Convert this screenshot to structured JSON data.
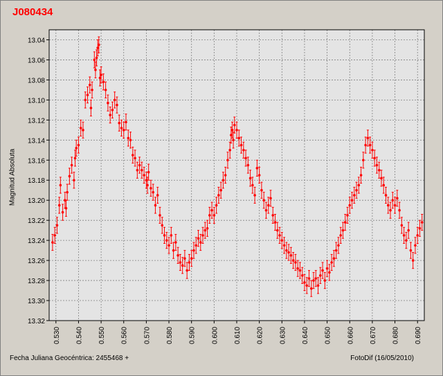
{
  "window": {
    "title": "J080434"
  },
  "footer": {
    "left": "Fecha Juliana Geocéntrica: 2455468 +",
    "right": "FotoDif (16/05/2010)"
  },
  "colors": {
    "data": "#ff0000",
    "plot_bg": "#e4e4e4",
    "grid": "#808080"
  },
  "chart_data": {
    "type": "scatter",
    "title": "J080434",
    "xlabel": "Fecha Juliana Geocéntrica: 2455468 +",
    "ylabel": "Magnitud Absoluta",
    "xlim": [
      0.527,
      0.693
    ],
    "ylim": [
      13.32,
      13.03
    ],
    "y_inverted": true,
    "grid": true,
    "error_bars": true,
    "x_ticks": [
      "0.530",
      "0.540",
      "0.550",
      "0.560",
      "0.570",
      "0.580",
      "0.590",
      "0.600",
      "0.610",
      "0.620",
      "0.630",
      "0.640",
      "0.650",
      "0.660",
      "0.670",
      "0.680",
      "0.690"
    ],
    "y_ticks": [
      "13.04",
      "13.06",
      "13.08",
      "13.10",
      "13.12",
      "13.14",
      "13.16",
      "13.18",
      "13.20",
      "13.22",
      "13.24",
      "13.26",
      "13.28",
      "13.30",
      "13.32"
    ],
    "series": [
      {
        "points": [
          [
            0.5285,
            13.242
          ],
          [
            0.5295,
            13.235
          ],
          [
            0.5305,
            13.225
          ],
          [
            0.5315,
            13.205
          ],
          [
            0.532,
            13.185
          ],
          [
            0.533,
            13.212
          ],
          [
            0.534,
            13.2
          ],
          [
            0.5345,
            13.208
          ],
          [
            0.535,
            13.192
          ],
          [
            0.536,
            13.176
          ],
          [
            0.537,
            13.165
          ],
          [
            0.538,
            13.18
          ],
          [
            0.5385,
            13.158
          ],
          [
            0.539,
            13.148
          ],
          [
            0.54,
            13.145
          ],
          [
            0.541,
            13.128
          ],
          [
            0.542,
            13.13
          ],
          [
            0.543,
            13.1
          ],
          [
            0.544,
            13.095
          ],
          [
            0.545,
            13.085
          ],
          [
            0.5455,
            13.108
          ],
          [
            0.546,
            13.09
          ],
          [
            0.547,
            13.06
          ],
          [
            0.5475,
            13.07
          ],
          [
            0.548,
            13.058
          ],
          [
            0.5485,
            13.048
          ],
          [
            0.549,
            13.045
          ],
          [
            0.5495,
            13.078
          ],
          [
            0.55,
            13.075
          ],
          [
            0.551,
            13.082
          ],
          [
            0.552,
            13.09
          ],
          [
            0.553,
            13.103
          ],
          [
            0.554,
            13.115
          ],
          [
            0.555,
            13.11
          ],
          [
            0.556,
            13.1
          ],
          [
            0.557,
            13.105
          ],
          [
            0.558,
            13.123
          ],
          [
            0.559,
            13.128
          ],
          [
            0.56,
            13.13
          ],
          [
            0.561,
            13.122
          ],
          [
            0.562,
            13.138
          ],
          [
            0.563,
            13.14
          ],
          [
            0.564,
            13.155
          ],
          [
            0.565,
            13.158
          ],
          [
            0.566,
            13.17
          ],
          [
            0.567,
            13.165
          ],
          [
            0.568,
            13.17
          ],
          [
            0.569,
            13.175
          ],
          [
            0.57,
            13.18
          ],
          [
            0.5705,
            13.185
          ],
          [
            0.571,
            13.172
          ],
          [
            0.572,
            13.188
          ],
          [
            0.573,
            13.192
          ],
          [
            0.574,
            13.205
          ],
          [
            0.575,
            13.195
          ],
          [
            0.576,
            13.215
          ],
          [
            0.577,
            13.225
          ],
          [
            0.578,
            13.235
          ],
          [
            0.579,
            13.24
          ],
          [
            0.58,
            13.245
          ],
          [
            0.581,
            13.235
          ],
          [
            0.582,
            13.25
          ],
          [
            0.583,
            13.242
          ],
          [
            0.584,
            13.255
          ],
          [
            0.585,
            13.262
          ],
          [
            0.586,
            13.265
          ],
          [
            0.587,
            13.258
          ],
          [
            0.588,
            13.27
          ],
          [
            0.589,
            13.262
          ],
          [
            0.59,
            13.258
          ],
          [
            0.591,
            13.25
          ],
          [
            0.592,
            13.245
          ],
          [
            0.593,
            13.238
          ],
          [
            0.594,
            13.242
          ],
          [
            0.595,
            13.235
          ],
          [
            0.596,
            13.23
          ],
          [
            0.597,
            13.228
          ],
          [
            0.598,
            13.215
          ],
          [
            0.599,
            13.21
          ],
          [
            0.6,
            13.215
          ],
          [
            0.601,
            13.205
          ],
          [
            0.602,
            13.195
          ],
          [
            0.603,
            13.19
          ],
          [
            0.604,
            13.18
          ],
          [
            0.605,
            13.175
          ],
          [
            0.606,
            13.16
          ],
          [
            0.607,
            13.15
          ],
          [
            0.6075,
            13.135
          ],
          [
            0.608,
            13.13
          ],
          [
            0.6085,
            13.14
          ],
          [
            0.609,
            13.125
          ],
          [
            0.61,
            13.13
          ],
          [
            0.611,
            13.138
          ],
          [
            0.612,
            13.145
          ],
          [
            0.613,
            13.15
          ],
          [
            0.614,
            13.158
          ],
          [
            0.615,
            13.165
          ],
          [
            0.616,
            13.178
          ],
          [
            0.617,
            13.185
          ],
          [
            0.618,
            13.195
          ],
          [
            0.619,
            13.168
          ],
          [
            0.62,
            13.175
          ],
          [
            0.621,
            13.19
          ],
          [
            0.622,
            13.2
          ],
          [
            0.623,
            13.21
          ],
          [
            0.624,
            13.205
          ],
          [
            0.625,
            13.198
          ],
          [
            0.626,
            13.215
          ],
          [
            0.627,
            13.222
          ],
          [
            0.628,
            13.23
          ],
          [
            0.629,
            13.235
          ],
          [
            0.63,
            13.24
          ],
          [
            0.631,
            13.245
          ],
          [
            0.632,
            13.25
          ],
          [
            0.633,
            13.252
          ],
          [
            0.634,
            13.255
          ],
          [
            0.635,
            13.26
          ],
          [
            0.636,
            13.262
          ],
          [
            0.637,
            13.268
          ],
          [
            0.638,
            13.27
          ],
          [
            0.639,
            13.275
          ],
          [
            0.64,
            13.282
          ],
          [
            0.641,
            13.285
          ],
          [
            0.642,
            13.278
          ],
          [
            0.643,
            13.288
          ],
          [
            0.644,
            13.28
          ],
          [
            0.645,
            13.278
          ],
          [
            0.646,
            13.285
          ],
          [
            0.647,
            13.275
          ],
          [
            0.648,
            13.27
          ],
          [
            0.649,
            13.28
          ],
          [
            0.65,
            13.268
          ],
          [
            0.651,
            13.272
          ],
          [
            0.652,
            13.262
          ],
          [
            0.653,
            13.258
          ],
          [
            0.654,
            13.25
          ],
          [
            0.655,
            13.245
          ],
          [
            0.656,
            13.235
          ],
          [
            0.657,
            13.23
          ],
          [
            0.658,
            13.222
          ],
          [
            0.659,
            13.215
          ],
          [
            0.66,
            13.205
          ],
          [
            0.661,
            13.2
          ],
          [
            0.662,
            13.195
          ],
          [
            0.663,
            13.19
          ],
          [
            0.664,
            13.185
          ],
          [
            0.665,
            13.175
          ],
          [
            0.666,
            13.16
          ],
          [
            0.667,
            13.145
          ],
          [
            0.668,
            13.138
          ],
          [
            0.669,
            13.145
          ],
          [
            0.67,
            13.15
          ],
          [
            0.671,
            13.158
          ],
          [
            0.672,
            13.165
          ],
          [
            0.673,
            13.17
          ],
          [
            0.674,
            13.178
          ],
          [
            0.675,
            13.185
          ],
          [
            0.676,
            13.195
          ],
          [
            0.677,
            13.205
          ],
          [
            0.678,
            13.21
          ],
          [
            0.679,
            13.2
          ],
          [
            0.68,
            13.205
          ],
          [
            0.681,
            13.198
          ],
          [
            0.682,
            13.21
          ],
          [
            0.683,
            13.225
          ],
          [
            0.684,
            13.235
          ],
          [
            0.685,
            13.24
          ],
          [
            0.686,
            13.23
          ],
          [
            0.687,
            13.25
          ],
          [
            0.688,
            13.26
          ],
          [
            0.689,
            13.245
          ],
          [
            0.69,
            13.235
          ],
          [
            0.691,
            13.228
          ],
          [
            0.692,
            13.222
          ]
        ]
      }
    ]
  }
}
